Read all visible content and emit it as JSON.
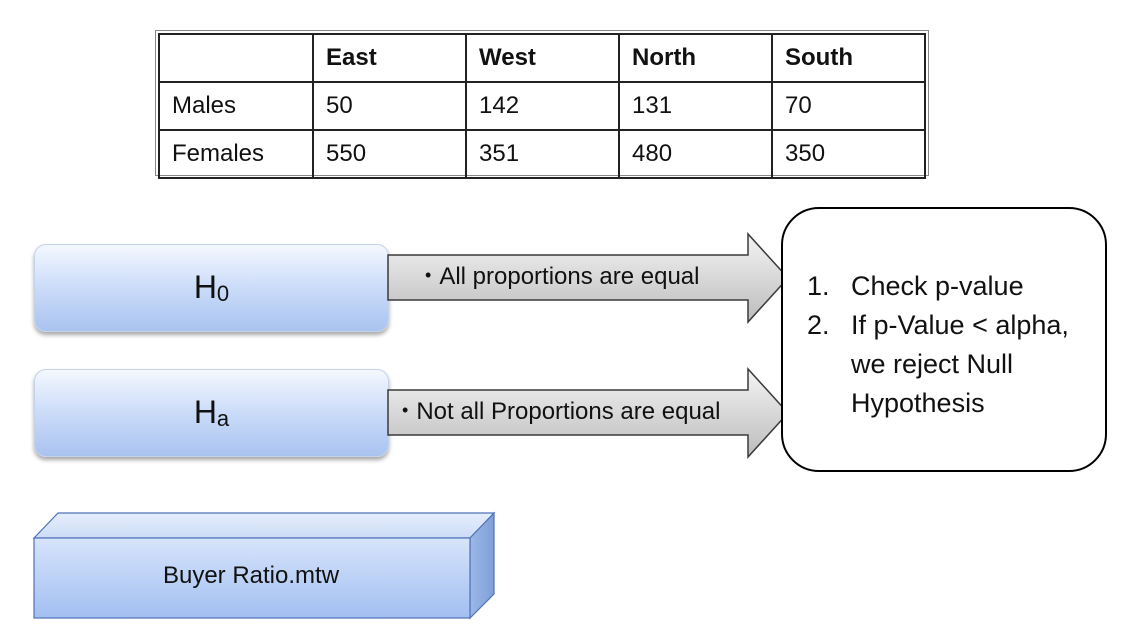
{
  "table": {
    "headers": [
      "",
      "East",
      "West",
      "North",
      "South"
    ],
    "rows": [
      [
        "Males",
        "50",
        "142",
        "131",
        "70"
      ],
      [
        "Females",
        "550",
        "351",
        "480",
        "350"
      ]
    ]
  },
  "hypotheses": {
    "null": {
      "letter": "H",
      "sub": "0",
      "statement": "All proportions are equal"
    },
    "alt": {
      "letter": "H",
      "sub": "a",
      "statement": "Not all Proportions are equal"
    },
    "bullet": "•"
  },
  "conclusion": {
    "steps": [
      {
        "num": "1.",
        "text": "Check p-value"
      },
      {
        "num": "2.",
        "text": "If p-Value < alpha, we reject Null Hypothesis"
      }
    ]
  },
  "worksheet": {
    "label": "Buyer Ratio.mtw"
  },
  "colors": {
    "arrow_fill_top": "#f2f2f2",
    "arrow_fill_bottom": "#bdbdbd",
    "box_blue": "#a9c3f0",
    "cube_front": "#a6c2f2",
    "cube_side": "#8eaee3"
  }
}
